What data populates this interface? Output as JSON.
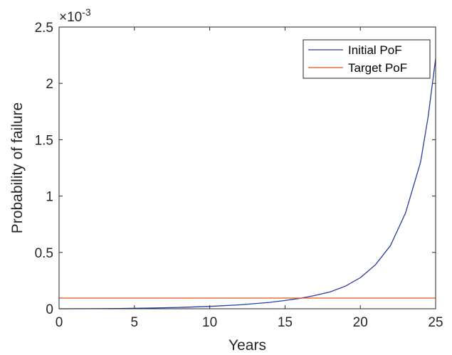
{
  "chart_data": {
    "type": "line",
    "title": "",
    "xlabel": "Years",
    "ylabel": "Probability of failure",
    "y_exponent_label": "×10",
    "y_exponent_power": "-3",
    "y_multiplier": 0.001,
    "xlim": [
      0,
      25
    ],
    "ylim": [
      0,
      2.5
    ],
    "x_ticks": [
      0,
      5,
      10,
      15,
      20,
      25
    ],
    "y_ticks": [
      0,
      0.5,
      1,
      1.5,
      2,
      2.5
    ],
    "x_tick_labels": [
      "0",
      "5",
      "10",
      "15",
      "20",
      "25"
    ],
    "y_tick_labels": [
      "0",
      "0.5",
      "1",
      "1.5",
      "2",
      "2.5"
    ],
    "grid": false,
    "legend_position": "top-right",
    "series": [
      {
        "name": "Initial PoF",
        "color": "#2b3a9c",
        "x": [
          0,
          4,
          6,
          8,
          10,
          12,
          14,
          15,
          16,
          16.5,
          17,
          18,
          19,
          20,
          21,
          22,
          23,
          24,
          24.5,
          25
        ],
        "y": [
          0,
          0.002,
          0.006,
          0.012,
          0.021,
          0.035,
          0.057,
          0.073,
          0.093,
          0.105,
          0.118,
          0.15,
          0.2,
          0.275,
          0.39,
          0.56,
          0.85,
          1.3,
          1.7,
          2.22
        ]
      },
      {
        "name": "Target PoF",
        "color": "#d95319",
        "x": [
          0,
          25
        ],
        "y": [
          0.095,
          0.095
        ]
      }
    ]
  }
}
